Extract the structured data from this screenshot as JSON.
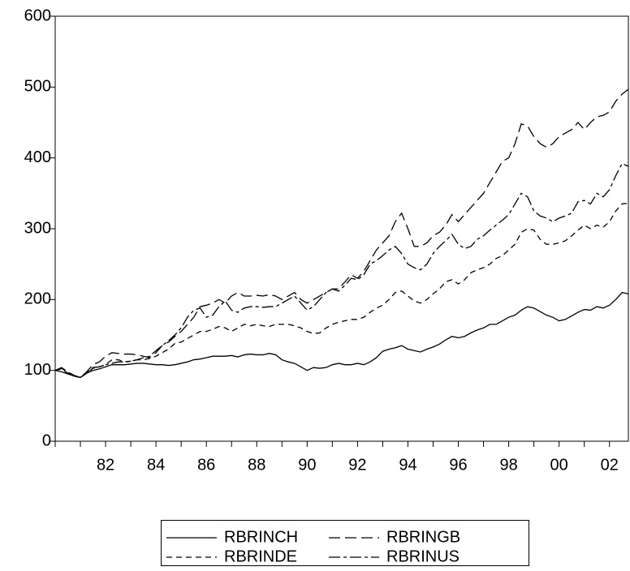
{
  "chart_data": {
    "type": "line",
    "categories": [
      null,
      null,
      null,
      null,
      null,
      null,
      null,
      null,
      "82",
      null,
      null,
      null,
      null,
      null,
      null,
      null,
      "84",
      null,
      null,
      null,
      null,
      null,
      null,
      null,
      "86",
      null,
      null,
      null,
      null,
      null,
      null,
      null,
      "88",
      null,
      null,
      null,
      null,
      null,
      null,
      null,
      "90",
      null,
      null,
      null,
      null,
      null,
      null,
      null,
      "92",
      null,
      null,
      null,
      null,
      null,
      null,
      null,
      "94",
      null,
      null,
      null,
      null,
      null,
      null,
      null,
      "96",
      null,
      null,
      null,
      null,
      null,
      null,
      null,
      "98",
      null,
      null,
      null,
      null,
      null,
      null,
      null,
      "00",
      null,
      null,
      null,
      null,
      null,
      null,
      null,
      "02",
      null,
      null,
      null
    ],
    "series": [
      {
        "name": "RBRINCH",
        "color": "#000000",
        "dash": "solid",
        "values": [
          100,
          98,
          95,
          92,
          90,
          96,
          100,
          102,
          105,
          108,
          108,
          108,
          109,
          110,
          110,
          109,
          108,
          108,
          107,
          108,
          110,
          112,
          115,
          116,
          118,
          120,
          120,
          120,
          121,
          119,
          122,
          123,
          122,
          122,
          124,
          122,
          115,
          112,
          110,
          105,
          100,
          104,
          103,
          104,
          108,
          110,
          108,
          108,
          110,
          108,
          112,
          118,
          127,
          130,
          132,
          135,
          130,
          128,
          126,
          130,
          133,
          137,
          143,
          148,
          146,
          148,
          153,
          157,
          160,
          165,
          165,
          170,
          175,
          178,
          185,
          190,
          188,
          183,
          178,
          175,
          170,
          172,
          177,
          182,
          186,
          185,
          190,
          188,
          192,
          200,
          210,
          208
        ]
      },
      {
        "name": "RBRINGB",
        "color": "#000000",
        "dash": "long",
        "values": [
          100,
          104,
          98,
          93,
          90,
          98,
          108,
          112,
          120,
          125,
          124,
          123,
          123,
          122,
          120,
          118,
          125,
          135,
          140,
          148,
          155,
          165,
          175,
          190,
          192,
          195,
          200,
          195,
          205,
          210,
          205,
          205,
          206,
          205,
          207,
          205,
          200,
          205,
          210,
          200,
          195,
          200,
          205,
          210,
          215,
          215,
          225,
          235,
          230,
          240,
          255,
          270,
          280,
          290,
          310,
          322,
          300,
          275,
          275,
          280,
          290,
          295,
          305,
          320,
          310,
          320,
          330,
          340,
          350,
          365,
          380,
          395,
          400,
          420,
          448,
          445,
          430,
          420,
          415,
          420,
          430,
          435,
          440,
          450,
          440,
          450,
          458,
          460,
          465,
          480,
          490,
          497
        ]
      },
      {
        "name": "RBRINDE",
        "color": "#000000",
        "dash": "short",
        "values": [
          100,
          102,
          96,
          92,
          90,
          96,
          103,
          105,
          108,
          115,
          115,
          112,
          113,
          115,
          115,
          117,
          120,
          125,
          130,
          138,
          140,
          145,
          150,
          155,
          155,
          158,
          162,
          160,
          155,
          160,
          165,
          163,
          165,
          163,
          162,
          165,
          165,
          165,
          163,
          160,
          155,
          152,
          153,
          160,
          165,
          168,
          170,
          172,
          172,
          175,
          182,
          188,
          192,
          200,
          210,
          212,
          205,
          198,
          195,
          200,
          208,
          215,
          225,
          228,
          222,
          228,
          238,
          242,
          245,
          250,
          258,
          262,
          270,
          278,
          295,
          300,
          298,
          285,
          278,
          278,
          280,
          283,
          290,
          298,
          305,
          300,
          305,
          302,
          310,
          325,
          335,
          336
        ]
      },
      {
        "name": "RBRINUS",
        "color": "#000000",
        "dash": "dashdot",
        "values": [
          100,
          103,
          97,
          92,
          90,
          97,
          104,
          105,
          108,
          110,
          112,
          112,
          113,
          115,
          118,
          120,
          128,
          135,
          142,
          150,
          160,
          175,
          185,
          188,
          175,
          178,
          190,
          198,
          185,
          182,
          188,
          190,
          190,
          189,
          190,
          190,
          195,
          200,
          205,
          195,
          185,
          190,
          200,
          210,
          215,
          212,
          220,
          230,
          228,
          235,
          250,
          255,
          262,
          270,
          275,
          265,
          250,
          245,
          242,
          250,
          265,
          275,
          283,
          292,
          278,
          272,
          275,
          285,
          290,
          298,
          305,
          312,
          320,
          335,
          350,
          345,
          325,
          318,
          315,
          310,
          315,
          318,
          322,
          338,
          340,
          335,
          350,
          345,
          355,
          375,
          392,
          388
        ]
      }
    ],
    "ylim": [
      0,
      600
    ],
    "yticks": [
      0,
      100,
      200,
      300,
      400,
      500,
      600
    ]
  }
}
